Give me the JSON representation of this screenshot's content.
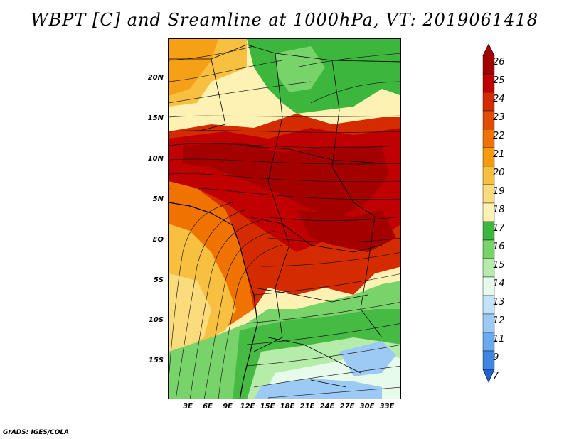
{
  "title": "WBPT [C] and Sreamline at 1000hPa, VT: 2019061418",
  "credit": "GrADS: IGES/COLA",
  "map": {
    "lon_range": [
      0,
      35
    ],
    "lat_range": [
      -20,
      24
    ],
    "y_axis_labels": [
      "20N",
      "15N",
      "10N",
      "5N",
      "EQ",
      "5S",
      "10S",
      "15S"
    ],
    "x_axis_labels": [
      "3E",
      "6E",
      "9E",
      "12E",
      "15E",
      "18E",
      "21E",
      "24E",
      "27E",
      "30E",
      "33E"
    ]
  },
  "colorbar": {
    "labels": [
      "26",
      "25",
      "24",
      "23",
      "22",
      "21",
      "20",
      "19",
      "18",
      "17",
      "16",
      "15",
      "14",
      "13",
      "12",
      "11",
      "9",
      "7"
    ],
    "colors": [
      "#a50000",
      "#c00000",
      "#d42c00",
      "#e24b00",
      "#f07200",
      "#f69a10",
      "#f8c040",
      "#fbdc7c",
      "#fdf2b4",
      "#3db63d",
      "#79d36b",
      "#b5ecaa",
      "#e6fbea",
      "#c3e2fb",
      "#9ccaf5",
      "#6aaaee",
      "#3f86e2",
      "#2060d0"
    ]
  }
}
